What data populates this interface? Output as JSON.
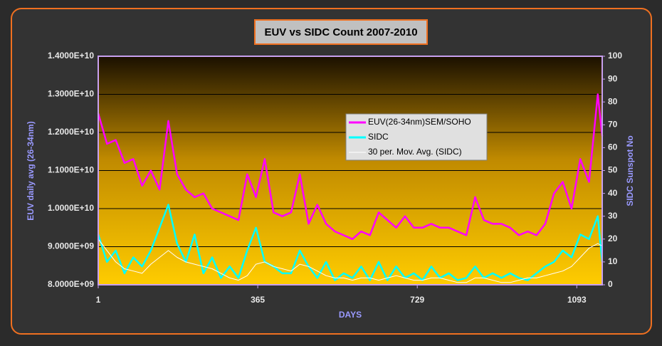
{
  "chart_data": {
    "type": "line",
    "title": "EUV vs SIDC Count 2007-2010",
    "xlabel": "DAYS",
    "ylabel": "EUV daily avg (26-34nm)",
    "y2label": "SIDC Sunspot No",
    "x": [
      1,
      21,
      41,
      61,
      81,
      101,
      121,
      141,
      161,
      181,
      201,
      221,
      241,
      261,
      281,
      301,
      321,
      341,
      361,
      381,
      401,
      421,
      441,
      461,
      481,
      501,
      521,
      541,
      561,
      581,
      601,
      621,
      641,
      661,
      681,
      701,
      721,
      741,
      761,
      781,
      801,
      821,
      841,
      861,
      881,
      901,
      921,
      941,
      961,
      981,
      1001,
      1021,
      1041,
      1061,
      1081,
      1101,
      1121,
      1141,
      1151
    ],
    "series": [
      {
        "name": "EUV(26-34nm)SEM/SOHO",
        "color": "#ff00ff",
        "axis": "y",
        "values": [
          12500000000.0,
          11700000000.0,
          11800000000.0,
          11200000000.0,
          11300000000.0,
          10600000000.0,
          11000000000.0,
          10500000000.0,
          12300000000.0,
          10900000000.0,
          10500000000.0,
          10300000000.0,
          10400000000.0,
          10000000000.0,
          9900000000.0,
          9800000000.0,
          9700000000.0,
          10900000000.0,
          10300000000.0,
          11300000000.0,
          9900000000.0,
          9800000000.0,
          9900000000.0,
          10900000000.0,
          9600000000.0,
          10100000000.0,
          9600000000.0,
          9400000000.0,
          9300000000.0,
          9200000000.0,
          9400000000.0,
          9300000000.0,
          9900000000.0,
          9700000000.0,
          9500000000.0,
          9800000000.0,
          9500000000.0,
          9500000000.0,
          9600000000.0,
          9500000000.0,
          9500000000.0,
          9400000000.0,
          9300000000.0,
          10300000000.0,
          9700000000.0,
          9600000000.0,
          9600000000.0,
          9500000000.0,
          9300000000.0,
          9400000000.0,
          9300000000.0,
          9600000000.0,
          10400000000.0,
          10700000000.0,
          10000000000.0,
          11300000000.0,
          10700000000.0,
          13000000000.0,
          11900000000.0
        ]
      },
      {
        "name": "SIDC",
        "color": "#00ffff",
        "axis": "y2",
        "values": [
          22,
          10,
          15,
          5,
          12,
          8,
          15,
          25,
          35,
          18,
          10,
          22,
          5,
          12,
          3,
          8,
          3,
          15,
          25,
          10,
          8,
          5,
          5,
          15,
          8,
          3,
          10,
          2,
          5,
          3,
          8,
          2,
          10,
          2,
          8,
          3,
          5,
          2,
          8,
          3,
          5,
          2,
          3,
          8,
          3,
          5,
          3,
          5,
          3,
          2,
          5,
          8,
          10,
          15,
          12,
          22,
          20,
          30,
          10
        ]
      },
      {
        "name": "30 per. Mov. Avg. (SIDC)",
        "color": "#ffffff",
        "axis": "y2",
        "values": [
          20,
          15,
          10,
          7,
          6,
          5,
          9,
          12,
          15,
          12,
          10,
          9,
          8,
          7,
          5,
          3,
          2,
          4,
          9,
          10,
          8,
          7,
          6,
          9,
          8,
          6,
          4,
          3,
          3,
          2,
          3,
          3,
          2,
          3,
          4,
          3,
          2,
          2,
          3,
          3,
          2,
          1,
          1,
          3,
          3,
          2,
          1,
          1,
          2,
          3,
          3,
          4,
          5,
          6,
          8,
          12,
          16,
          18,
          17
        ]
      }
    ],
    "xlim": [
      1,
      1151
    ],
    "xticks": [
      1,
      365,
      729,
      1093
    ],
    "ylim": [
      8000000000,
      14000000000
    ],
    "yticks": [
      {
        "value": 8000000000,
        "label": "8.0000E+09"
      },
      {
        "value": 9000000000,
        "label": "9.0000E+09"
      },
      {
        "value": 10000000000,
        "label": "1.0000E+10"
      },
      {
        "value": 11000000000,
        "label": "1.1000E+10"
      },
      {
        "value": 12000000000,
        "label": "1.2000E+10"
      },
      {
        "value": 13000000000,
        "label": "1.3000E+10"
      },
      {
        "value": 14000000000,
        "label": "1.4000E+10"
      }
    ],
    "y2lim": [
      0,
      100
    ],
    "y2ticks": [
      0,
      10,
      20,
      30,
      40,
      50,
      60,
      70,
      80,
      90,
      100
    ],
    "grid": true
  }
}
